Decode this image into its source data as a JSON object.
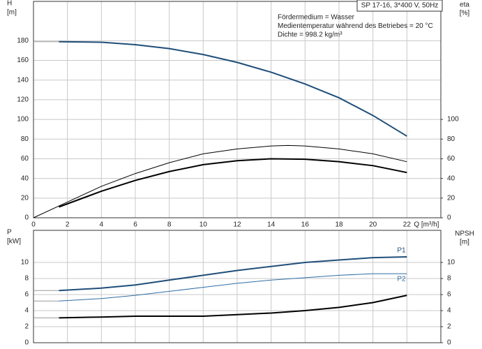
{
  "chart_data": [
    {
      "type": "line",
      "title": "SP 17-16, 3*400 V, 50Hz",
      "annotations": [
        "Fördermedium = Wasser",
        "Medientemperatur während des Betriebes = 20 °C",
        "Dichte = 998.2 kg/m³"
      ],
      "ylabel": "H",
      "yunit": "[m]",
      "y2label": "eta",
      "y2unit": "[%]",
      "xlabel": "Q [m³/h]",
      "xlim": [
        0,
        24
      ],
      "xticks": [
        0,
        2,
        4,
        6,
        8,
        10,
        12,
        14,
        16,
        18,
        20,
        22
      ],
      "show_xtick_labels": true,
      "ylim": [
        0,
        220
      ],
      "yticks": [
        0,
        20,
        40,
        60,
        80,
        100,
        120,
        140,
        160,
        180
      ],
      "y2lim": [
        0,
        220
      ],
      "y2ticks": [
        0,
        20,
        40,
        60,
        80,
        100
      ],
      "grid": true,
      "series": [
        {
          "color": "#9a9a9a",
          "line_width": 1,
          "x": [
            0,
            1.5
          ],
          "values": [
            179,
            179
          ]
        },
        {
          "color": "#1f4e79",
          "line_width": 2,
          "x": [
            1.5,
            4,
            6,
            8,
            10,
            12,
            14,
            16,
            18,
            20,
            22
          ],
          "values": [
            179,
            178.5,
            176,
            172,
            166,
            158,
            148,
            136,
            122,
            104,
            83
          ]
        },
        {
          "color": "#000000",
          "line_width": 1,
          "axis": "y2",
          "x": [
            0,
            2,
            4,
            6,
            8,
            10,
            12,
            14,
            15,
            16,
            18,
            20,
            22
          ],
          "values": [
            0,
            16,
            32,
            45,
            56,
            65,
            70,
            73,
            73.5,
            73,
            70,
            65,
            57
          ]
        },
        {
          "color": "#000000",
          "line_width": 2,
          "axis": "y2",
          "x": [
            1.5,
            4,
            6,
            8,
            10,
            12,
            14,
            16,
            18,
            20,
            22
          ],
          "values": [
            11,
            27,
            38,
            47,
            54,
            58,
            60,
            59.5,
            57,
            53,
            46
          ]
        }
      ]
    },
    {
      "type": "line",
      "ylabel": "P",
      "yunit": "[kW]",
      "y2label": "NPSH",
      "y2unit": "[m]",
      "xlim": [
        0,
        24
      ],
      "xticks": [
        0,
        2,
        4,
        6,
        8,
        10,
        12,
        14,
        16,
        18,
        20,
        22
      ],
      "show_xtick_labels": false,
      "ylim": [
        0,
        14
      ],
      "yticks": [
        0,
        2,
        4,
        6,
        8,
        10
      ],
      "y2lim": [
        0,
        14
      ],
      "y2ticks": [
        0,
        2,
        4,
        6,
        8,
        10
      ],
      "grid": true,
      "series": [
        {
          "color": "#9a9a9a",
          "line_width": 1,
          "x": [
            0,
            1.5
          ],
          "values": [
            6.5,
            6.5
          ]
        },
        {
          "name": "P1",
          "color": "#1f4e79",
          "line_width": 2,
          "x": [
            1.5,
            4,
            6,
            8,
            10,
            12,
            14,
            16,
            18,
            20,
            22
          ],
          "values": [
            6.5,
            6.8,
            7.2,
            7.8,
            8.4,
            9.0,
            9.5,
            10.0,
            10.3,
            10.6,
            10.7
          ]
        },
        {
          "color": "#9a9a9a",
          "line_width": 1,
          "x": [
            0,
            1.5
          ],
          "values": [
            5.2,
            5.2
          ]
        },
        {
          "name": "P2",
          "color": "#2e6da4",
          "line_width": 1,
          "x": [
            1.5,
            4,
            6,
            8,
            10,
            12,
            14,
            16,
            18,
            20,
            22
          ],
          "values": [
            5.2,
            5.5,
            5.9,
            6.4,
            6.9,
            7.4,
            7.8,
            8.1,
            8.4,
            8.6,
            8.6
          ]
        },
        {
          "color": "#9a9a9a",
          "line_width": 1,
          "axis": "y2",
          "x": [
            0,
            1.5
          ],
          "values": [
            3.1,
            3.1
          ]
        },
        {
          "color": "#000000",
          "line_width": 2,
          "axis": "y2",
          "x": [
            1.5,
            4,
            6,
            8,
            10,
            12,
            14,
            16,
            18,
            20,
            22
          ],
          "values": [
            3.1,
            3.2,
            3.3,
            3.3,
            3.3,
            3.5,
            3.7,
            4.0,
            4.4,
            5.0,
            5.9
          ]
        }
      ]
    }
  ]
}
